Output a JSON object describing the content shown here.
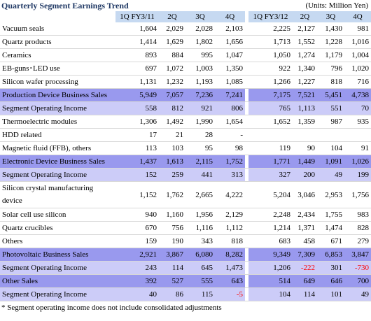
{
  "header": {
    "title": "Quarterly Segment Earnings Trend",
    "units": "(Units:  Million Yen)"
  },
  "table": {
    "columns": [
      "1Q FY3/11",
      "2Q",
      "3Q",
      "4Q",
      "1Q FY3/12",
      "2Q",
      "3Q",
      "4Q"
    ],
    "header_fill": "#c6d9f1",
    "negative_color": "#ff0000",
    "rows": [
      {
        "label": "Vacuum seals",
        "cells": [
          "1,604",
          "2,029",
          "2,028",
          "2,103",
          "2,225",
          "2,127",
          "1,430",
          "981"
        ]
      },
      {
        "label": "Quartz products",
        "cells": [
          "1,414",
          "1,629",
          "1,802",
          "1,656",
          "1,713",
          "1,552",
          "1,228",
          "1,016"
        ]
      },
      {
        "label": "Ceramics",
        "cells": [
          "893",
          "884",
          "995",
          "1,047",
          "1,050",
          "1,274",
          "1,179",
          "1,004"
        ]
      },
      {
        "label": "EB-guns･LED use",
        "cells": [
          "697",
          "1,072",
          "1,003",
          "1,350",
          "922",
          "1,340",
          "796",
          "1,020"
        ]
      },
      {
        "label": "Silicon wafer processing",
        "cells": [
          "1,131",
          "1,232",
          "1,193",
          "1,085",
          "1,266",
          "1,227",
          "818",
          "716"
        ]
      },
      {
        "label": "Production Device Business Sales",
        "cells": [
          "5,949",
          "7,057",
          "7,236",
          "7,241",
          "7,175",
          "7,521",
          "5,451",
          "4,738"
        ],
        "fill": "#9999ee"
      },
      {
        "label": "Segment Operating Income",
        "cells": [
          "558",
          "812",
          "921",
          "806",
          "765",
          "1,113",
          "551",
          "70"
        ],
        "fill": "#ccccf8"
      },
      {
        "label": "Thermoelectric modules",
        "cells": [
          "1,306",
          "1,492",
          "1,990",
          "1,654",
          "1,652",
          "1,359",
          "987",
          "935"
        ]
      },
      {
        "label": "HDD related",
        "cells": [
          "17",
          "21",
          "28",
          "-",
          null,
          null,
          null,
          null
        ]
      },
      {
        "label": "Magnetic fluid (FFB), others",
        "cells": [
          "113",
          "103",
          "95",
          "98",
          "119",
          "90",
          "104",
          "91"
        ]
      },
      {
        "label": "Electronic Device Business Sales",
        "cells": [
          "1,437",
          "1,613",
          "2,115",
          "1,752",
          "1,771",
          "1,449",
          "1,091",
          "1,026"
        ],
        "fill": "#9999ee"
      },
      {
        "label": "Segment Operating Income",
        "cells": [
          "152",
          "259",
          "441",
          "313",
          "327",
          "200",
          "49",
          "199"
        ],
        "fill": "#ccccf8"
      },
      {
        "label": "Silicon crystal manufacturing device",
        "cells": [
          "1,152",
          "1,762",
          "2,665",
          "4,222",
          "5,204",
          "3,046",
          "2,953",
          "1,756"
        ]
      },
      {
        "label": "Solar cell use silicon",
        "cells": [
          "940",
          "1,160",
          "1,956",
          "2,129",
          "2,248",
          "2,434",
          "1,755",
          "983"
        ]
      },
      {
        "label": "Quartz crucibles",
        "cells": [
          "670",
          "756",
          "1,116",
          "1,112",
          "1,214",
          "1,371",
          "1,474",
          "828"
        ]
      },
      {
        "label": "Others",
        "cells": [
          "159",
          "190",
          "343",
          "818",
          "683",
          "458",
          "671",
          "279"
        ]
      },
      {
        "label": "Photovoltaic Business Sales",
        "cells": [
          "2,921",
          "3,867",
          "6,080",
          "8,282",
          "9,349",
          "7,309",
          "6,853",
          "3,847"
        ],
        "fill": "#9999ee"
      },
      {
        "label": "Segment Operating Income",
        "cells": [
          "243",
          "114",
          "645",
          "1,473",
          "1,206",
          "-222",
          "301",
          "-730"
        ],
        "fill": "#ccccf8"
      },
      {
        "label": "Other Sales",
        "cells": [
          "392",
          "527",
          "555",
          "643",
          "514",
          "649",
          "646",
          "700"
        ],
        "fill": "#9999ee"
      },
      {
        "label": "Segment Operating Income",
        "cells": [
          "40",
          "86",
          "115",
          "-5",
          "104",
          "114",
          "101",
          "49"
        ],
        "fill": "#ccccf8"
      }
    ]
  },
  "footnote": "* Segment operating income does not include consolidated adjustments"
}
